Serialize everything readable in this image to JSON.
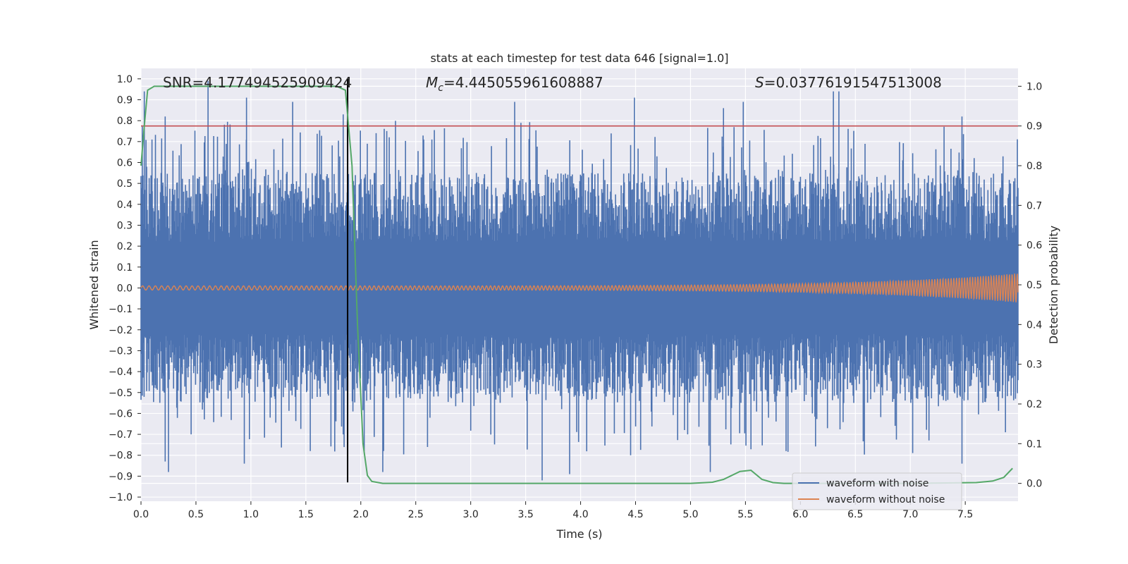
{
  "chart_data": {
    "type": "line",
    "title": "stats at each timestep for test data 646 [signal=1.0]",
    "xlabel": "Time (s)",
    "ylabel_left": "Whitened strain",
    "ylabel_right": "Detection probability",
    "xlim": [
      0.0,
      7.98
    ],
    "ylim_left": [
      -1.02,
      1.05
    ],
    "ylim_right": [
      -0.045,
      1.045
    ],
    "x_ticks": [
      0.0,
      0.5,
      1.0,
      1.5,
      2.0,
      2.5,
      3.0,
      3.5,
      4.0,
      4.5,
      5.0,
      5.5,
      6.0,
      6.5,
      7.0,
      7.5
    ],
    "x_tick_labels": [
      "0.0",
      "0.5",
      "1.0",
      "1.5",
      "2.0",
      "2.5",
      "3.0",
      "3.5",
      "4.0",
      "4.5",
      "5.0",
      "5.5",
      "6.0",
      "6.5",
      "7.0",
      "7.5"
    ],
    "y_ticks_left": [
      -1.0,
      -0.9,
      -0.8,
      -0.7,
      -0.6,
      -0.5,
      -0.4,
      -0.3,
      -0.2,
      -0.1,
      0.0,
      0.1,
      0.2,
      0.3,
      0.4,
      0.5,
      0.6,
      0.7,
      0.8,
      0.9,
      1.0
    ],
    "y_tick_labels_left": [
      "−1.0",
      "−0.9",
      "−0.8",
      "−0.7",
      "−0.6",
      "−0.5",
      "−0.4",
      "−0.3",
      "−0.2",
      "−0.1",
      "0.0",
      "0.1",
      "0.2",
      "0.3",
      "0.4",
      "0.5",
      "0.6",
      "0.7",
      "0.8",
      "0.9",
      "1.0"
    ],
    "y_ticks_right": [
      0.0,
      0.1,
      0.2,
      0.3,
      0.4,
      0.5,
      0.6,
      0.7,
      0.8,
      0.9,
      1.0
    ],
    "y_tick_labels_right": [
      "0.0",
      "0.1",
      "0.2",
      "0.3",
      "0.4",
      "0.5",
      "0.6",
      "0.7",
      "0.8",
      "0.9",
      "1.0"
    ],
    "grid": true,
    "annotations": {
      "snr": "SNR=4.177494525909424",
      "mc_symbol": "M",
      "mc_sub": "c",
      "mc_value": "=4.445055961608887",
      "s_symbol": "S",
      "s_value": "=0.03776191547513008"
    },
    "threshold_line": {
      "axis": "right",
      "y": 0.9,
      "color": "#c44e52"
    },
    "event_marker": {
      "x": 1.88,
      "y_range_left": [
        -0.93,
        1.0
      ],
      "color": "#000000"
    },
    "series": [
      {
        "name": "waveform with noise",
        "axis": "left",
        "color": "#4c72b0",
        "envelope": {
          "typical_max": 0.55,
          "typical_min": -0.55,
          "spikes": [
            {
              "x": 0.03,
              "y": 0.94
            },
            {
              "x": 0.1,
              "y": 0.71
            },
            {
              "x": 0.22,
              "y": 0.82
            },
            {
              "x": 0.61,
              "y": 0.99
            },
            {
              "x": 0.96,
              "y": 0.91
            },
            {
              "x": 1.38,
              "y": 0.89
            },
            {
              "x": 1.84,
              "y": 0.83
            },
            {
              "x": 3.4,
              "y": 0.89
            },
            {
              "x": 4.49,
              "y": 0.91
            },
            {
              "x": 5.3,
              "y": 0.86
            },
            {
              "x": 5.48,
              "y": 0.89
            },
            {
              "x": 6.3,
              "y": 0.94
            },
            {
              "x": 6.35,
              "y": 0.94
            },
            {
              "x": 7.47,
              "y": 0.82
            },
            {
              "x": 0.22,
              "y": -0.83
            },
            {
              "x": 0.25,
              "y": -0.88
            },
            {
              "x": 0.94,
              "y": -0.84
            },
            {
              "x": 2.2,
              "y": -0.88
            },
            {
              "x": 3.65,
              "y": -0.92
            },
            {
              "x": 3.9,
              "y": -0.89
            },
            {
              "x": 5.18,
              "y": -0.88
            },
            {
              "x": 7.47,
              "y": -0.84
            },
            {
              "x": 1.84,
              "y": -0.7
            }
          ]
        }
      },
      {
        "name": "waveform without noise",
        "axis": "left",
        "color": "#dd8452",
        "amplitude_start": 0.01,
        "amplitude_end": 0.07
      },
      {
        "name": "detection probability",
        "axis": "right",
        "color": "#55a868",
        "x": [
          0.0,
          0.03,
          0.06,
          0.12,
          0.5,
          1.0,
          1.5,
          1.78,
          1.86,
          1.92,
          1.97,
          2.02,
          2.06,
          2.1,
          2.2,
          3.0,
          4.0,
          5.0,
          5.2,
          5.3,
          5.45,
          5.55,
          5.65,
          5.75,
          5.85,
          6.0,
          7.0,
          7.6,
          7.75,
          7.85,
          7.93
        ],
        "y": [
          0.8,
          0.9,
          0.99,
          1.0,
          1.0,
          1.0,
          1.0,
          1.0,
          0.99,
          0.8,
          0.4,
          0.1,
          0.02,
          0.005,
          0.0,
          0.0,
          0.0,
          0.0,
          0.003,
          0.01,
          0.03,
          0.033,
          0.01,
          0.002,
          0.0,
          0.0,
          0.0,
          0.002,
          0.006,
          0.015,
          0.038
        ]
      }
    ],
    "legend": {
      "position": "lower-right",
      "entries": [
        {
          "label": "waveform with noise",
          "color": "#4c72b0"
        },
        {
          "label": "waveform without noise",
          "color": "#dd8452"
        }
      ]
    },
    "colors": {
      "background": "#eaeaf2",
      "grid": "#ffffff",
      "text": "#262626"
    }
  }
}
